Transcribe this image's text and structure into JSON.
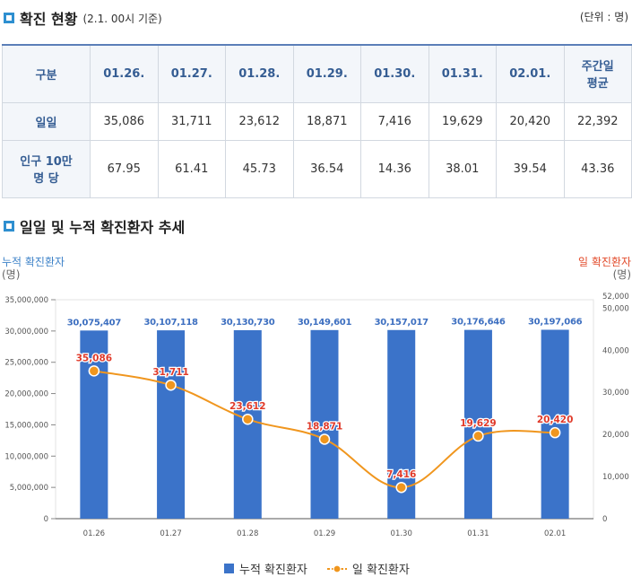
{
  "status": {
    "title": "확진 현황",
    "subtitle": "(2.1. 00시 기준)",
    "unit": "(단위 : 명)"
  },
  "table": {
    "header": [
      "구분",
      "01.26.",
      "01.27.",
      "01.28.",
      "01.29.",
      "01.30.",
      "01.31.",
      "02.01.",
      "주간일\n평균"
    ],
    "header_last_line1": "주간일",
    "header_last_line2": "평균",
    "rows": [
      {
        "label": "일일",
        "values": [
          "35,086",
          "31,711",
          "23,612",
          "18,871",
          "7,416",
          "19,629",
          "20,420",
          "22,392"
        ]
      },
      {
        "label_line1": "인구 10만",
        "label_line2": "명 당",
        "values": [
          "67.95",
          "61.41",
          "45.73",
          "36.54",
          "14.36",
          "38.01",
          "39.54",
          "43.36"
        ]
      }
    ]
  },
  "trend": {
    "title": "일일 및 누적 확진환자 추세",
    "left_axis_title": "누적 확진환자",
    "left_axis_unit": "(명)",
    "right_axis_title": "일 확진환자",
    "right_axis_unit": "(명)"
  },
  "legend": {
    "bar_label": "누적 확진환자",
    "line_label": "일 확진환자"
  },
  "colors": {
    "bar": "#3b73c9",
    "line": "#f0961e",
    "line_label": "#e03a2a",
    "bar_label": "#3d6fc0",
    "accent": "#2e8fd0"
  },
  "chart_data": {
    "type": "bar+line",
    "categories": [
      "01.26",
      "01.27",
      "01.28",
      "01.29",
      "01.30",
      "01.31",
      "02.01"
    ],
    "series": [
      {
        "name": "누적 확진환자",
        "type": "bar",
        "axis": "left",
        "values": [
          30075407,
          30107118,
          30130730,
          30149601,
          30157017,
          30176646,
          30197066
        ],
        "labels": [
          "30,075,407",
          "30,107,118",
          "30,130,730",
          "30,149,601",
          "30,157,017",
          "30,176,646",
          "30,197,066"
        ]
      },
      {
        "name": "일 확진환자",
        "type": "line",
        "axis": "right",
        "values": [
          35086,
          31711,
          23612,
          18871,
          7416,
          19629,
          20420
        ],
        "labels": [
          "35,086",
          "31,711",
          "23,612",
          "18,871",
          "7,416",
          "19,629",
          "20,420"
        ]
      }
    ],
    "left_axis": {
      "min": 0,
      "max": 35000000,
      "ticks": [
        "0",
        "5,000,000",
        "10,000,000",
        "15,000,000",
        "20,000,000",
        "25,000,000",
        "30,000,000",
        "35,000,000"
      ]
    },
    "right_axis": {
      "min": 0,
      "max": 52000,
      "ticks": [
        "0",
        "10,000",
        "20,000",
        "30,000",
        "40,000",
        "50,000",
        "52,000"
      ],
      "tick_values": [
        0,
        10000,
        20000,
        30000,
        40000,
        50000,
        52000
      ]
    },
    "grid": false,
    "legend_position": "bottom-center"
  }
}
